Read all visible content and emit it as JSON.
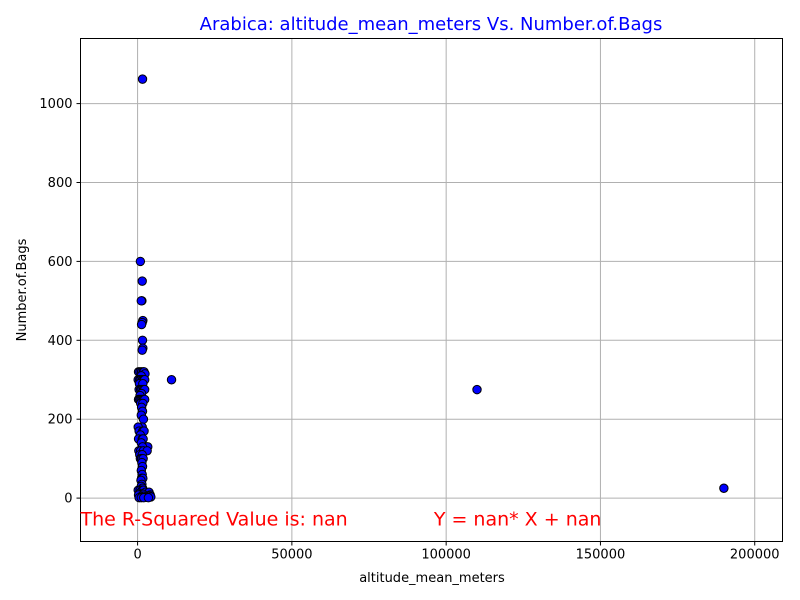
{
  "chart_data": {
    "type": "scatter",
    "title": "Arabica: altitude_mean_meters Vs. Number.of.Bags",
    "title_color": "#0000ff",
    "xlabel": "altitude_mean_meters",
    "ylabel": "Number.of.Bags",
    "xlim": [
      -18500,
      209000
    ],
    "ylim": [
      -110,
      1165
    ],
    "xticks": [
      0,
      50000,
      100000,
      150000,
      200000
    ],
    "xtick_labels": [
      "0",
      "50000",
      "100000",
      "150000",
      "200000"
    ],
    "yticks": [
      0,
      200,
      400,
      600,
      800,
      1000
    ],
    "ytick_labels": [
      "0",
      "200",
      "400",
      "600",
      "800",
      "1000"
    ],
    "grid": true,
    "marker_fill": "#0000ff",
    "marker_edge": "#000000",
    "points": [
      [
        1600,
        1062
      ],
      [
        900,
        600
      ],
      [
        1500,
        550
      ],
      [
        1400,
        500
      ],
      [
        1200,
        500
      ],
      [
        1700,
        450
      ],
      [
        1500,
        445
      ],
      [
        1300,
        440
      ],
      [
        1600,
        400
      ],
      [
        1700,
        380
      ],
      [
        1500,
        375
      ],
      [
        300,
        320
      ],
      [
        800,
        320
      ],
      [
        1300,
        320
      ],
      [
        1800,
        320
      ],
      [
        2100,
        320
      ],
      [
        2400,
        315
      ],
      [
        1200,
        310
      ],
      [
        200,
        300
      ],
      [
        700,
        300
      ],
      [
        1100,
        300
      ],
      [
        1600,
        300
      ],
      [
        2000,
        300
      ],
      [
        2300,
        300
      ],
      [
        11000,
        300
      ],
      [
        600,
        290
      ],
      [
        1700,
        290
      ],
      [
        500,
        275
      ],
      [
        1000,
        275
      ],
      [
        1400,
        275
      ],
      [
        1900,
        275
      ],
      [
        2300,
        275
      ],
      [
        110000,
        275
      ],
      [
        1300,
        265
      ],
      [
        800,
        260
      ],
      [
        300,
        250
      ],
      [
        700,
        250
      ],
      [
        1100,
        250
      ],
      [
        1500,
        250
      ],
      [
        1900,
        250
      ],
      [
        2300,
        250
      ],
      [
        1000,
        240
      ],
      [
        1700,
        240
      ],
      [
        1300,
        230
      ],
      [
        1600,
        220
      ],
      [
        1200,
        210
      ],
      [
        1900,
        200
      ],
      [
        1500,
        180
      ],
      [
        200,
        180
      ],
      [
        500,
        170
      ],
      [
        1700,
        170
      ],
      [
        2100,
        170
      ],
      [
        900,
        160
      ],
      [
        300,
        150
      ],
      [
        1500,
        150
      ],
      [
        1800,
        150
      ],
      [
        1200,
        140
      ],
      [
        2800,
        130
      ],
      [
        3300,
        130
      ],
      [
        1600,
        130
      ],
      [
        400,
        120
      ],
      [
        1000,
        120
      ],
      [
        1900,
        120
      ],
      [
        3100,
        120
      ],
      [
        700,
        110
      ],
      [
        1500,
        110
      ],
      [
        900,
        100
      ],
      [
        1300,
        100
      ],
      [
        1800,
        100
      ],
      [
        1400,
        90
      ],
      [
        1600,
        80
      ],
      [
        1200,
        70
      ],
      [
        1500,
        60
      ],
      [
        1300,
        50
      ],
      [
        1700,
        50
      ],
      [
        1100,
        45
      ],
      [
        1400,
        35
      ],
      [
        1200,
        30
      ],
      [
        1600,
        25
      ],
      [
        190000,
        25
      ],
      [
        200,
        20
      ],
      [
        800,
        20
      ],
      [
        1500,
        20
      ],
      [
        1900,
        20
      ],
      [
        2600,
        15
      ],
      [
        3700,
        15
      ],
      [
        600,
        12
      ],
      [
        1100,
        10
      ],
      [
        1800,
        10
      ],
      [
        300,
        8
      ],
      [
        4100,
        8
      ],
      [
        1300,
        5
      ],
      [
        2200,
        5
      ],
      [
        3200,
        5
      ],
      [
        3900,
        5
      ],
      [
        4300,
        3
      ],
      [
        900,
        2
      ],
      [
        1600,
        2
      ],
      [
        2900,
        2
      ],
      [
        500,
        1
      ],
      [
        1200,
        1
      ],
      [
        2000,
        1
      ],
      [
        3500,
        1
      ]
    ],
    "annotations": [
      {
        "text": "The R-Squared Value is: nan",
        "x": -18500,
        "y": -70,
        "color": "#ff0000"
      },
      {
        "text": "Y = nan* X + nan",
        "x": 96000,
        "y": -70,
        "color": "#ff0000"
      }
    ]
  }
}
